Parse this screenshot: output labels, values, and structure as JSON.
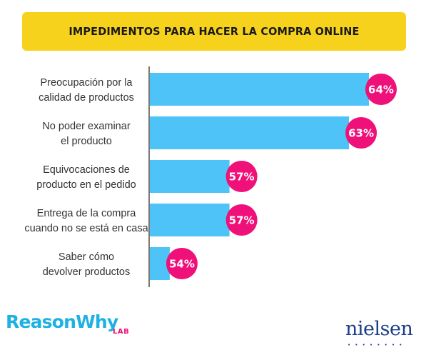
{
  "header": {
    "title": "IMPEDIMENTOS PARA HACER LA COMPRA ONLINE"
  },
  "colors": {
    "banner": "#f7d21c",
    "bar": "#4dc3f8",
    "bubble": "#ef1079",
    "axis": "#222222",
    "reasonwhy": "#1fb1e3",
    "lab": "#ef1079",
    "nielsen": "#1b3e88"
  },
  "logos": {
    "left": {
      "main": "ReasonWhy",
      "sub": "LAB"
    },
    "right": {
      "text": "nielsen",
      "dots": "••••••••"
    }
  },
  "chart_data": {
    "type": "bar",
    "orientation": "horizontal",
    "title": "IMPEDIMENTOS PARA HACER LA COMPRA ONLINE",
    "categories": [
      [
        "Preocupación por la",
        "calidad de productos"
      ],
      [
        "No poder examinar",
        "el producto"
      ],
      [
        "Equivocaciones de",
        "producto en el pedido"
      ],
      [
        "Entrega de la compra",
        "cuando no se está en casa"
      ],
      [
        "Saber cómo",
        "devolver productos"
      ]
    ],
    "values": [
      64,
      63,
      57,
      57,
      54
    ],
    "value_labels": [
      "64%",
      "63%",
      "57%",
      "57%",
      "54%"
    ],
    "value_axis_range": [
      53,
      64
    ],
    "grid": false,
    "legend": "none"
  }
}
